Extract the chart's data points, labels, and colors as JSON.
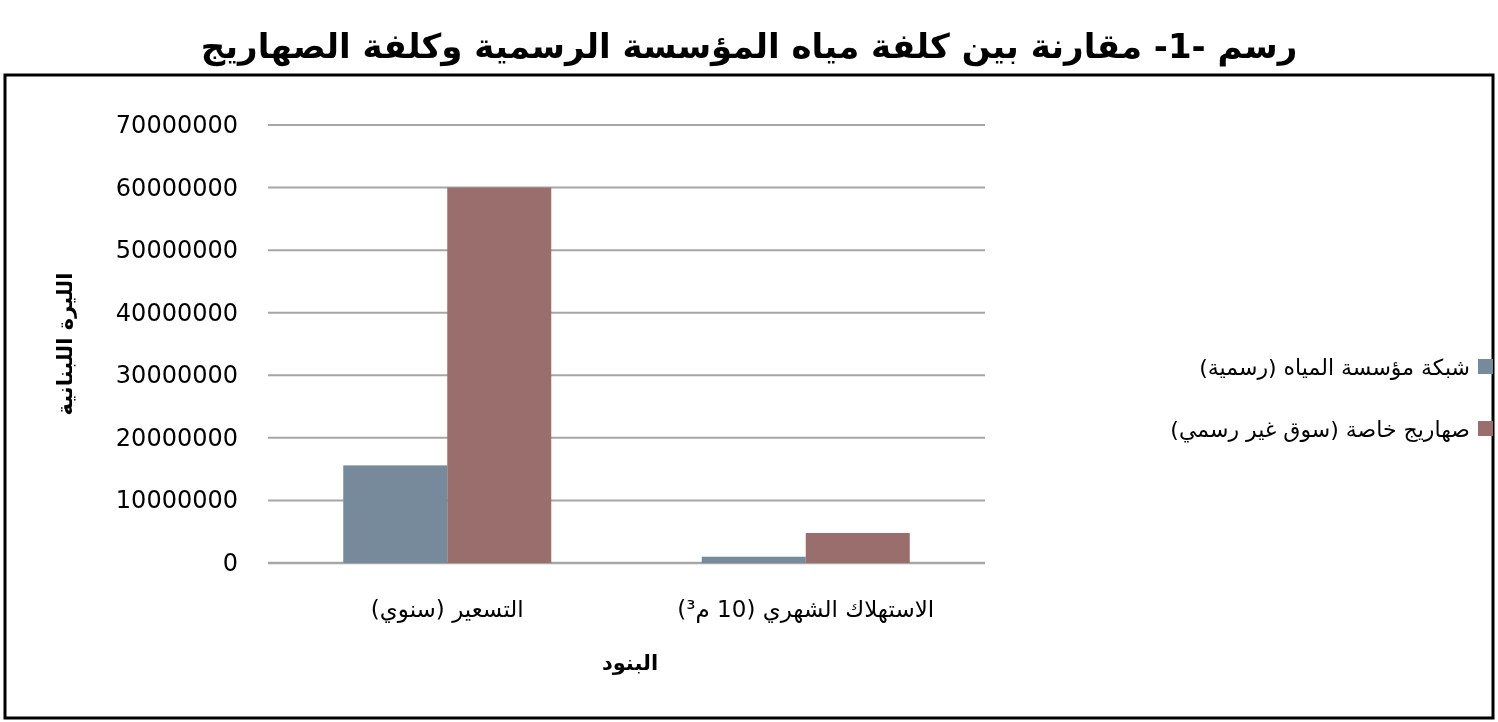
{
  "chart_data": {
    "type": "bar",
    "title": "رسم -1- مقارنة بين كلفة مياه المؤسسة الرسمية وكلفة الصهاريج",
    "xlabel": "البنود",
    "ylabel": "الليرة اللبنانية",
    "categories": [
      "التسعير (سنوي)",
      "الاستهلاك الشهري (10 م³)"
    ],
    "series": [
      {
        "name": "شبكة مؤسسة المياه (رسمية)",
        "color": "#768a9c",
        "values": [
          15600000,
          1000000
        ]
      },
      {
        "name": "صهاريج خاصة (سوق غير رسمي)",
        "color": "#9b6e6e",
        "values": [
          60000000,
          4800000
        ]
      }
    ],
    "ylim": [
      0,
      70000000
    ],
    "yticks": [
      0,
      10000000,
      20000000,
      30000000,
      40000000,
      50000000,
      60000000,
      70000000
    ],
    "grid": "y",
    "legend": "right"
  }
}
